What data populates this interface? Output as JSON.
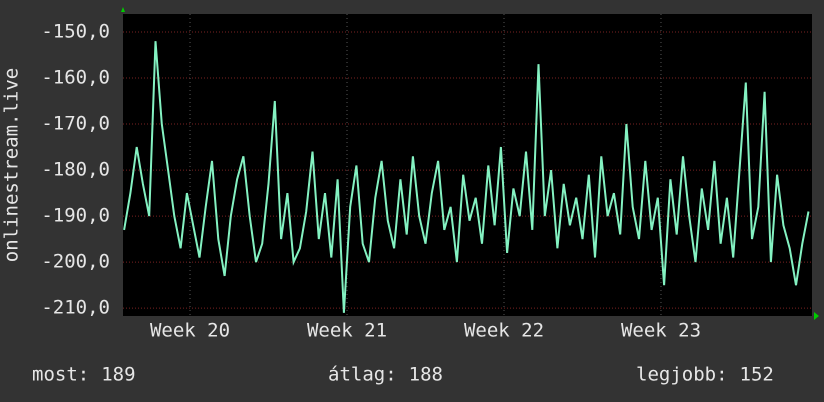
{
  "chart_data": {
    "type": "line",
    "y_label": "onlinestream.live",
    "xlim": [
      19.573,
      23.962
    ],
    "xticks": [
      {
        "value": 20,
        "label": "Week 20"
      },
      {
        "value": 21,
        "label": "Week 21"
      },
      {
        "value": 22,
        "label": "Week 22"
      },
      {
        "value": 23,
        "label": "Week 23"
      }
    ],
    "ylim": [
      -211.7,
      -146.1
    ],
    "yticks": [
      {
        "value": -210,
        "label": "-210,0"
      },
      {
        "value": -200,
        "label": "-200,0"
      },
      {
        "value": -190,
        "label": "-190,0"
      },
      {
        "value": -180,
        "label": "-180,0"
      },
      {
        "value": -170,
        "label": "-170,0"
      },
      {
        "value": -160,
        "label": "-160,0"
      },
      {
        "value": -150,
        "label": "-150,0"
      }
    ],
    "grid": true,
    "x": [
      19.58,
      19.62,
      19.66,
      19.7,
      19.74,
      19.78,
      19.82,
      19.86,
      19.9,
      19.94,
      19.98,
      20.02,
      20.06,
      20.1,
      20.14,
      20.18,
      20.22,
      20.26,
      20.3,
      20.34,
      20.38,
      20.42,
      20.46,
      20.5,
      20.54,
      20.58,
      20.62,
      20.66,
      20.7,
      20.74,
      20.78,
      20.82,
      20.86,
      20.9,
      20.94,
      20.98,
      21.02,
      21.06,
      21.1,
      21.14,
      21.18,
      21.22,
      21.26,
      21.3,
      21.34,
      21.38,
      21.42,
      21.46,
      21.5,
      21.54,
      21.58,
      21.62,
      21.66,
      21.7,
      21.74,
      21.78,
      21.82,
      21.86,
      21.9,
      21.94,
      21.98,
      22.02,
      22.06,
      22.1,
      22.14,
      22.18,
      22.22,
      22.26,
      22.3,
      22.34,
      22.38,
      22.42,
      22.46,
      22.5,
      22.54,
      22.58,
      22.62,
      22.66,
      22.7,
      22.74,
      22.78,
      22.82,
      22.86,
      22.9,
      22.94,
      22.98,
      23.02,
      23.06,
      23.1,
      23.14,
      23.18,
      23.22,
      23.26,
      23.3,
      23.34,
      23.38,
      23.42,
      23.46,
      23.5,
      23.54,
      23.58,
      23.62,
      23.66,
      23.7,
      23.74,
      23.78,
      23.82,
      23.86,
      23.9,
      23.94
    ],
    "series": [
      {
        "color": "#84f2c2",
        "values": [
          -193,
          -185,
          -175,
          -183,
          -190,
          -152,
          -170,
          -180,
          -190,
          -197,
          -185,
          -192,
          -199,
          -188,
          -178,
          -195,
          -203,
          -190,
          -182,
          -177,
          -190,
          -200,
          -196,
          -183,
          -165,
          -195,
          -185,
          -200,
          -197,
          -189,
          -176,
          -195,
          -185,
          -199,
          -182,
          -211,
          -188,
          -179,
          -196,
          -200,
          -186,
          -178,
          -191,
          -197,
          -182,
          -194,
          -177,
          -190,
          -196,
          -185,
          -178,
          -193,
          -188,
          -200,
          -181,
          -191,
          -186,
          -196,
          -179,
          -192,
          -175,
          -198,
          -184,
          -190,
          -176,
          -193,
          -157,
          -190,
          -180,
          -197,
          -183,
          -192,
          -186,
          -195,
          -181,
          -199,
          -177,
          -190,
          -185,
          -194,
          -170,
          -188,
          -195,
          -178,
          -193,
          -186,
          -205,
          -182,
          -194,
          -177,
          -190,
          -200,
          -184,
          -193,
          -178,
          -196,
          -186,
          -199,
          -180,
          -161,
          -195,
          -188,
          -163,
          -200,
          -181,
          -192,
          -197,
          -205,
          -196,
          -189
        ]
      }
    ],
    "stats": [
      {
        "label": "most:",
        "value": 189
      },
      {
        "label": "átlag:",
        "value": 188
      },
      {
        "label": "legjobb:",
        "value": 152
      }
    ]
  }
}
